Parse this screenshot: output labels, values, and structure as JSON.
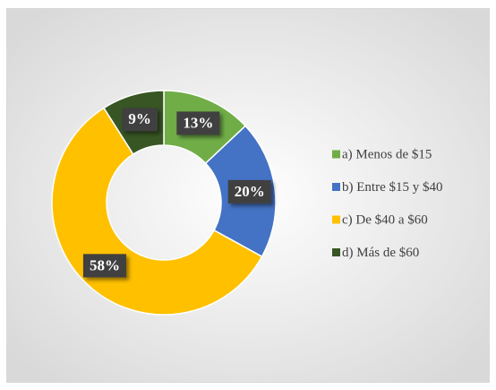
{
  "chart_data": {
    "type": "pie",
    "donut": true,
    "categories": [
      "a) Menos de $15",
      "b) Entre $15 y $40",
      "c) De $40 a $60",
      "d) Más de $60"
    ],
    "values": [
      13,
      20,
      58,
      9
    ],
    "value_labels": [
      "13%",
      "20%",
      "58%",
      "9%"
    ],
    "colors": [
      "#70ad47",
      "#4472c4",
      "#ffc000",
      "#375623"
    ],
    "legend": "right"
  }
}
